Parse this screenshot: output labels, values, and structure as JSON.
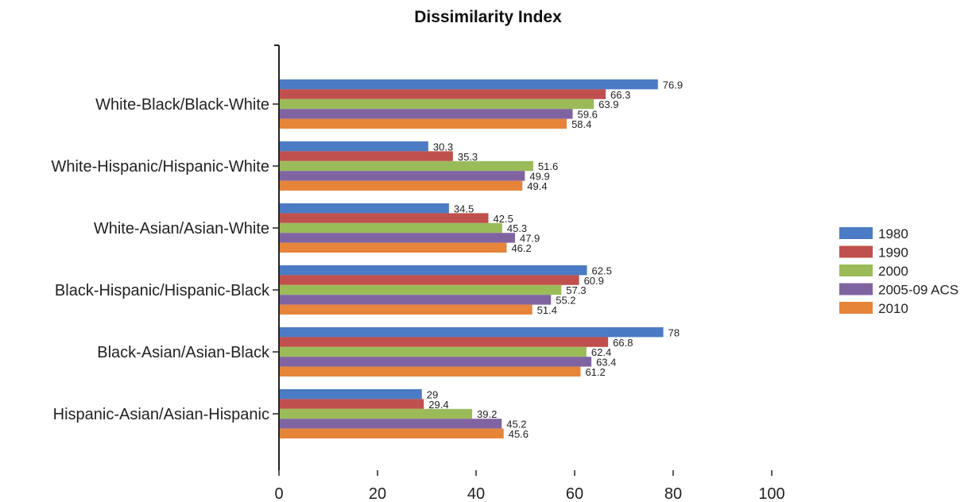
{
  "chart_data": {
    "type": "bar",
    "orientation": "horizontal",
    "title": "Dissimilarity Index",
    "xlabel": "",
    "ylabel": "",
    "xlim": [
      0,
      100
    ],
    "xticks": [
      0,
      20,
      40,
      60,
      80,
      100
    ],
    "grid": false,
    "legend_position": "right",
    "categories": [
      "White-Black/Black-White",
      "White-Hispanic/Hispanic-White",
      "White-Asian/Asian-White",
      "Black-Hispanic/Hispanic-Black",
      "Black-Asian/Asian-Black",
      "Hispanic-Asian/Asian-Hispanic"
    ],
    "series": [
      {
        "name": "1980",
        "color": "#4a7bc4",
        "values": [
          76.9,
          30.3,
          34.5,
          62.5,
          78,
          29
        ]
      },
      {
        "name": "1990",
        "color": "#c0504d",
        "values": [
          66.3,
          35.3,
          42.5,
          60.9,
          66.8,
          29.4
        ]
      },
      {
        "name": "2000",
        "color": "#9bbb59",
        "values": [
          63.9,
          51.6,
          45.3,
          57.3,
          62.4,
          39.2
        ]
      },
      {
        "name": "2005-09 ACS",
        "color": "#8064a2",
        "values": [
          59.6,
          49.9,
          47.9,
          55.2,
          63.4,
          45.2
        ]
      },
      {
        "name": "2010",
        "color": "#e6853a",
        "values": [
          58.4,
          49.4,
          46.2,
          51.4,
          61.2,
          45.6
        ]
      }
    ],
    "data_labels": [
      [
        "76.9",
        "30.3",
        "34.5",
        "62.5",
        "78",
        "29"
      ],
      [
        "66.3",
        "35.3",
        "42.5",
        "60.9",
        "66.8",
        "29.4"
      ],
      [
        "63.9",
        "51.6",
        "45.3",
        "57.3",
        "62.4",
        "39.2"
      ],
      [
        "59.6",
        "49.9",
        "47.9",
        "55.2",
        "63.4",
        "45.2"
      ],
      [
        "58.4",
        "49.4",
        "46.2",
        "51.4",
        "61.2",
        "45.6"
      ]
    ]
  }
}
